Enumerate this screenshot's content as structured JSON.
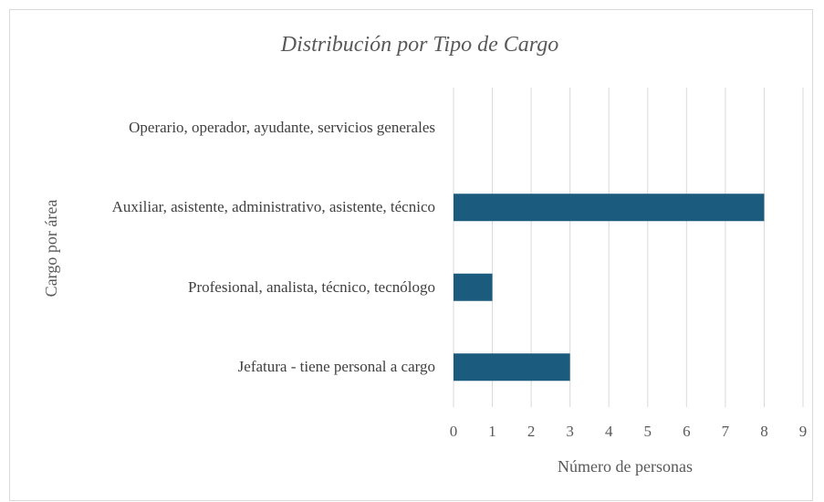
{
  "chart_data": {
    "type": "bar",
    "orientation": "horizontal",
    "title": "Distribución por Tipo de Cargo",
    "x_label": "Número de personas",
    "y_label": "Cargo por área",
    "categories": [
      "Operario, operador, ayudante, servicios generales",
      "Auxiliar, asistente, administrativo, asistente, técnico",
      "Profesional, analista, técnico, tecnólogo",
      "Jefatura - tiene personal a cargo"
    ],
    "values": [
      0,
      8,
      1,
      3
    ],
    "color": "#1b5c7e",
    "xlim": [
      0,
      9
    ],
    "xticks": [
      0,
      1,
      2,
      3,
      4,
      5,
      6,
      7,
      8,
      9
    ],
    "grid": true
  }
}
